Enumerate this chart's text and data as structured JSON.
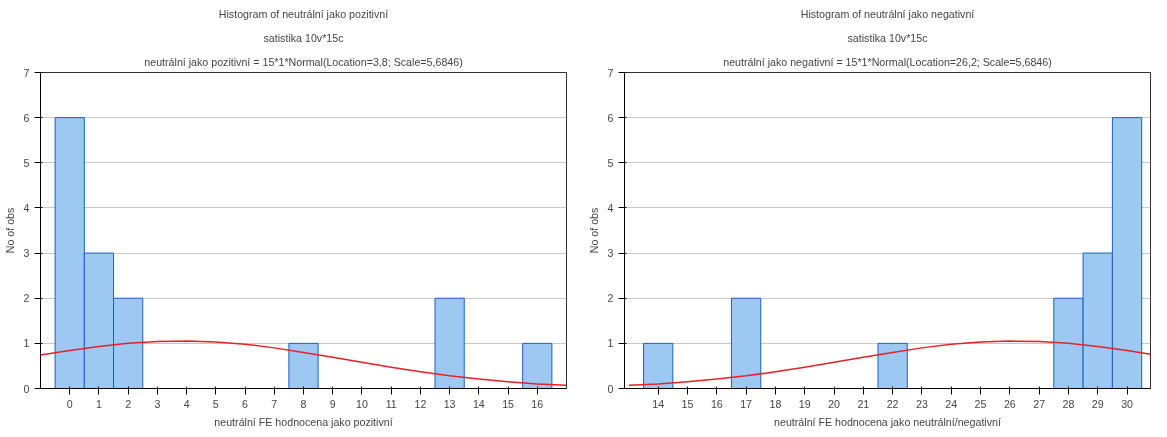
{
  "chart_data": [
    {
      "type": "histogram",
      "title": "Histogram of neutrální jako pozitivní",
      "subtitle": "satistika 10v*15c",
      "annotations": [
        "neutrální jako pozitivní = 15*1*Normal(Location=3,8; Scale=5,6846)"
      ],
      "xlabel": "neutrální FE hodnocena jako pozitivní",
      "ylabel": "No of obs",
      "bins": [
        -0.5,
        0.5,
        1.5,
        2.5,
        3.5,
        4.5,
        5.5,
        6.5,
        7.5,
        8.5,
        9.5,
        10.5,
        11.5,
        12.5,
        13.5,
        14.5,
        15.5,
        16.5
      ],
      "values": [
        6,
        3,
        2,
        0,
        0,
        0,
        0,
        0,
        1,
        0,
        0,
        0,
        0,
        2,
        0,
        0,
        1
      ],
      "color": "#9cc8f2",
      "series": [
        {
          "type": "line",
          "color": "#e8202a",
          "x": [
            -1,
            0,
            1,
            2,
            3,
            4,
            5,
            6,
            7,
            8,
            9,
            10,
            11,
            12,
            13,
            14,
            15,
            16,
            17
          ],
          "values": [
            0.74,
            0.84,
            0.93,
            1.0,
            1.04,
            1.05,
            1.03,
            0.98,
            0.9,
            0.8,
            0.69,
            0.58,
            0.47,
            0.37,
            0.28,
            0.21,
            0.15,
            0.1,
            0.07
          ]
        }
      ],
      "xlim": [
        -1,
        17
      ],
      "xticks": [
        0,
        1,
        2,
        3,
        4,
        5,
        6,
        7,
        8,
        9,
        10,
        11,
        12,
        13,
        14,
        15,
        16
      ],
      "ylim": [
        0,
        7
      ],
      "yticks": [
        0,
        1,
        2,
        3,
        4,
        5,
        6,
        7
      ],
      "grid": "y"
    },
    {
      "type": "histogram",
      "title": "Histogram of neutrální jako negativní",
      "subtitle": "satistika 10v*15c",
      "annotations": [
        "neutrální jako negativní = 15*1*Normal(Location=26,2; Scale=5,6846)"
      ],
      "xlabel": "neutrální FE hodnocena jako neutrální/negativní",
      "ylabel": "No of obs",
      "bins": [
        13.5,
        14.5,
        15.5,
        16.5,
        17.5,
        18.5,
        19.5,
        20.5,
        21.5,
        22.5,
        23.5,
        24.5,
        25.5,
        26.5,
        27.5,
        28.5,
        29.5,
        30.5
      ],
      "values": [
        1,
        0,
        0,
        2,
        0,
        0,
        0,
        0,
        1,
        0,
        0,
        0,
        0,
        0,
        2,
        3,
        6
      ],
      "color": "#9cc8f2",
      "series": [
        {
          "type": "line",
          "color": "#e8202a",
          "x": [
            13,
            14,
            15,
            16,
            17,
            18,
            19,
            20,
            21,
            22,
            23,
            24,
            25,
            26,
            27,
            28,
            29,
            30,
            30.8
          ],
          "values": [
            0.07,
            0.1,
            0.15,
            0.21,
            0.28,
            0.37,
            0.47,
            0.58,
            0.69,
            0.8,
            0.9,
            0.98,
            1.03,
            1.05,
            1.04,
            1.0,
            0.93,
            0.84,
            0.76
          ]
        }
      ],
      "xlim": [
        12.85,
        30.8
      ],
      "xticks": [
        14,
        15,
        16,
        17,
        18,
        19,
        20,
        21,
        22,
        23,
        24,
        25,
        26,
        27,
        28,
        29,
        30
      ],
      "ylim": [
        0,
        7
      ],
      "yticks": [
        0,
        1,
        2,
        3,
        4,
        5,
        6,
        7
      ],
      "grid": "y"
    }
  ]
}
